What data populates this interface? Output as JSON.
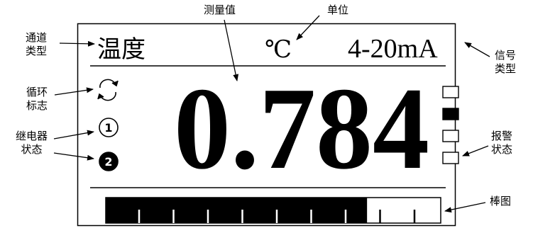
{
  "display": {
    "channel_type": "温度",
    "unit": "℃",
    "signal_type": "4-20mA",
    "value": "0.784",
    "relays": [
      {
        "label": "1",
        "state": "off"
      },
      {
        "label": "2",
        "state": "on"
      }
    ],
    "alarms": [
      "off",
      "on",
      "off",
      "off"
    ],
    "bar": {
      "fill_fraction": 0.78,
      "tick_count": 9
    }
  },
  "callouts": {
    "channel_type": [
      "通道",
      "类型"
    ],
    "measured_value": "测量值",
    "unit": "单位",
    "signal_type": [
      "信号",
      "类型"
    ],
    "cycle_flag": [
      "循环",
      "标志"
    ],
    "relay_status": [
      "继电器",
      "状态"
    ],
    "alarm_status": [
      "报警",
      "状态"
    ],
    "bar_graph": "棒图"
  },
  "colors": {
    "ink": "#000000",
    "background": "#ffffff"
  }
}
